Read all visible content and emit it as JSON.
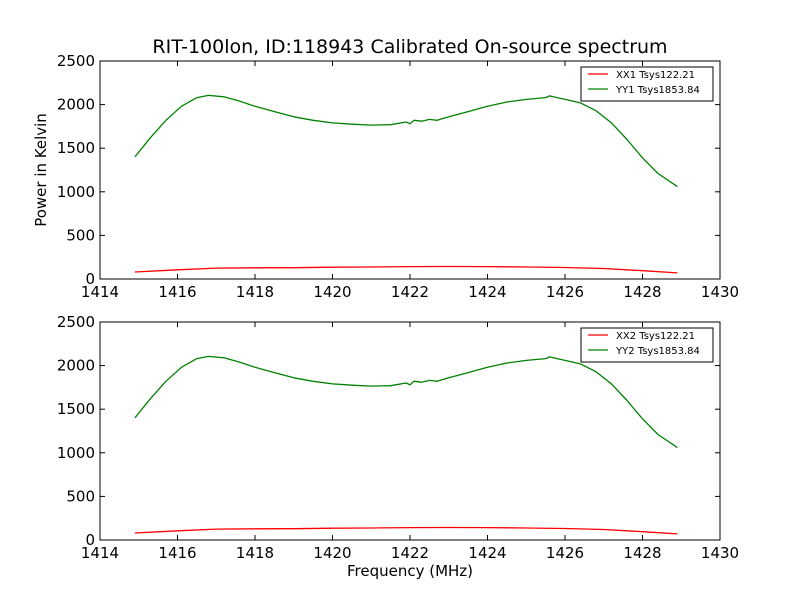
{
  "title": "RIT-100lon, ID:118943 Calibrated On-source spectrum",
  "chart_data": [
    {
      "type": "line",
      "xlabel": "",
      "ylabel": "Power in Kelvin",
      "xlim": [
        1414,
        1430
      ],
      "ylim": [
        0,
        2500
      ],
      "xticks": [
        "1414",
        "1416",
        "1418",
        "1420",
        "1422",
        "1424",
        "1426",
        "1428",
        "1430"
      ],
      "yticks": [
        "0",
        "500",
        "1000",
        "1500",
        "2000",
        "2500"
      ],
      "legend_position": "top-right",
      "grid": false,
      "series": [
        {
          "name": "XX1 Tsys122.21",
          "color": "#ff0000",
          "x": [
            1414.9,
            1416.0,
            1417.0,
            1418.0,
            1419.0,
            1420.0,
            1421.0,
            1422.0,
            1423.0,
            1424.0,
            1425.0,
            1426.0,
            1427.0,
            1428.0,
            1428.9
          ],
          "y": [
            80,
            105,
            125,
            128,
            130,
            135,
            138,
            142,
            143,
            142,
            138,
            132,
            120,
            95,
            70
          ]
        },
        {
          "name": "YY1 Tsys1853.84",
          "color": "#008000",
          "x": [
            1414.9,
            1415.3,
            1415.7,
            1416.1,
            1416.5,
            1416.8,
            1417.2,
            1417.6,
            1418.0,
            1418.5,
            1419.0,
            1419.5,
            1420.0,
            1420.5,
            1421.0,
            1421.5,
            1421.9,
            1422.0,
            1422.1,
            1422.3,
            1422.5,
            1422.7,
            1423.0,
            1423.5,
            1424.0,
            1424.5,
            1425.0,
            1425.5,
            1425.6,
            1426.0,
            1426.4,
            1426.8,
            1427.2,
            1427.6,
            1428.0,
            1428.4,
            1428.9
          ],
          "y": [
            1400,
            1620,
            1820,
            1980,
            2080,
            2105,
            2090,
            2040,
            1980,
            1920,
            1860,
            1820,
            1790,
            1775,
            1765,
            1770,
            1800,
            1780,
            1820,
            1810,
            1830,
            1820,
            1860,
            1920,
            1980,
            2030,
            2060,
            2080,
            2100,
            2060,
            2020,
            1930,
            1790,
            1600,
            1390,
            1210,
            1060
          ]
        }
      ]
    },
    {
      "type": "line",
      "xlabel": "Frequency (MHz)",
      "ylabel": "",
      "xlim": [
        1414,
        1430
      ],
      "ylim": [
        0,
        2500
      ],
      "xticks": [
        "1414",
        "1416",
        "1418",
        "1420",
        "1422",
        "1424",
        "1426",
        "1428",
        "1430"
      ],
      "yticks": [
        "0",
        "500",
        "1000",
        "1500",
        "2000",
        "2500"
      ],
      "legend_position": "top-right",
      "grid": false,
      "series": [
        {
          "name": "XX2 Tsys122.21",
          "color": "#ff0000",
          "x": [
            1414.9,
            1416.0,
            1417.0,
            1418.0,
            1419.0,
            1420.0,
            1421.0,
            1422.0,
            1423.0,
            1424.0,
            1425.0,
            1426.0,
            1427.0,
            1428.0,
            1428.9
          ],
          "y": [
            80,
            105,
            125,
            128,
            130,
            135,
            138,
            142,
            143,
            142,
            138,
            132,
            120,
            95,
            70
          ]
        },
        {
          "name": "YY2 Tsys1853.84",
          "color": "#008000",
          "x": [
            1414.9,
            1415.3,
            1415.7,
            1416.1,
            1416.5,
            1416.8,
            1417.2,
            1417.6,
            1418.0,
            1418.5,
            1419.0,
            1419.5,
            1420.0,
            1420.5,
            1421.0,
            1421.5,
            1421.9,
            1422.0,
            1422.1,
            1422.3,
            1422.5,
            1422.7,
            1423.0,
            1423.5,
            1424.0,
            1424.5,
            1425.0,
            1425.5,
            1425.6,
            1426.0,
            1426.4,
            1426.8,
            1427.2,
            1427.6,
            1428.0,
            1428.4,
            1428.9
          ],
          "y": [
            1400,
            1620,
            1820,
            1980,
            2080,
            2105,
            2090,
            2040,
            1980,
            1920,
            1860,
            1820,
            1790,
            1775,
            1765,
            1770,
            1800,
            1780,
            1820,
            1810,
            1830,
            1820,
            1860,
            1920,
            1980,
            2030,
            2060,
            2080,
            2100,
            2060,
            2020,
            1930,
            1790,
            1600,
            1390,
            1210,
            1060
          ]
        }
      ]
    }
  ]
}
